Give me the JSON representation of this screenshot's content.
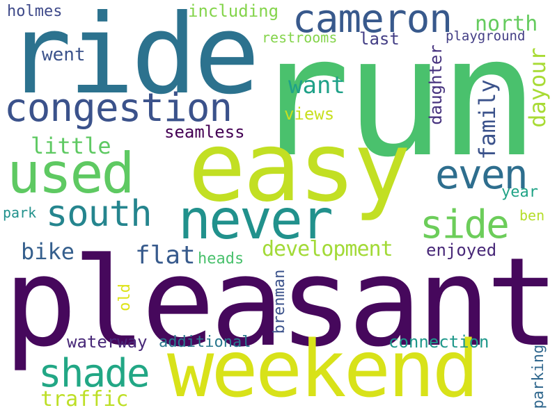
{
  "words": [
    {
      "text": "run",
      "color": "#4ac16d"
    },
    {
      "text": "pleasant",
      "color": "#46085c"
    },
    {
      "text": "ride",
      "color": "#2c728e"
    },
    {
      "text": "easy",
      "color": "#c2df23"
    },
    {
      "text": "weekend",
      "color": "#d8e219"
    },
    {
      "text": "never",
      "color": "#21918c"
    },
    {
      "text": "cameron",
      "color": "#38598c"
    },
    {
      "text": "congestion",
      "color": "#3b528b"
    },
    {
      "text": "used",
      "color": "#5ec962"
    },
    {
      "text": "south",
      "color": "#25858e"
    },
    {
      "text": "even",
      "color": "#2e6e8e"
    },
    {
      "text": "side",
      "color": "#6ccd5a"
    },
    {
      "text": "shade",
      "color": "#22a785"
    },
    {
      "text": "development",
      "color": "#a2da37"
    },
    {
      "text": "want",
      "color": "#1fa188"
    },
    {
      "text": "north",
      "color": "#65cb5e"
    },
    {
      "text": "little",
      "color": "#5ec962"
    },
    {
      "text": "flat",
      "color": "#375a8c"
    },
    {
      "text": "bike",
      "color": "#355f8d"
    },
    {
      "text": "traffic",
      "color": "#bddf26"
    },
    {
      "text": "family",
      "color": "#3b528b"
    },
    {
      "text": "dayour",
      "color": "#a8db34"
    },
    {
      "text": "daughter",
      "color": "#46327e"
    },
    {
      "text": "including",
      "color": "#84d44b"
    },
    {
      "text": "holmes",
      "color": "#3e4989"
    },
    {
      "text": "went",
      "color": "#3b528b"
    },
    {
      "text": "last",
      "color": "#433e85"
    },
    {
      "text": "restrooms",
      "color": "#84d44b"
    },
    {
      "text": "playground",
      "color": "#433e85"
    },
    {
      "text": "views",
      "color": "#c8e020"
    },
    {
      "text": "seamless",
      "color": "#440154"
    },
    {
      "text": "year",
      "color": "#20a386"
    },
    {
      "text": "park",
      "color": "#21918c"
    },
    {
      "text": "ben",
      "color": "#b5de2b"
    },
    {
      "text": "enjoyed",
      "color": "#482878"
    },
    {
      "text": "heads",
      "color": "#4ac16d"
    },
    {
      "text": "old",
      "color": "#dde318"
    },
    {
      "text": "brenman",
      "color": "#3b528b"
    },
    {
      "text": "waterway",
      "color": "#482878"
    },
    {
      "text": "additional",
      "color": "#2a788e"
    },
    {
      "text": "connection",
      "color": "#1f988b"
    },
    {
      "text": "parking",
      "color": "#31688e"
    }
  ]
}
